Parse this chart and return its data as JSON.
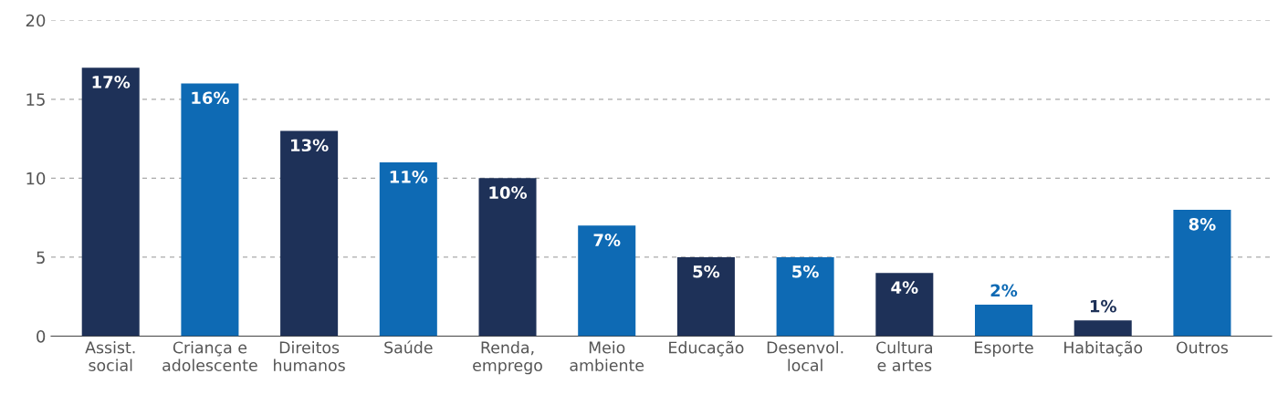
{
  "chart_data": {
    "type": "bar",
    "categories": [
      "Assist.\nsocial",
      "Criança e\nadolescente",
      "Direitos\nhumanos",
      "Saúde",
      "Renda,\nemprego",
      "Meio\nambiente",
      "Educação",
      "Desenvol.\nlocal",
      "Cultura\ne artes",
      "Esporte",
      "Habitação",
      "Outros"
    ],
    "values": [
      17,
      16,
      13,
      11,
      10,
      7,
      5,
      5,
      4,
      2,
      1,
      8
    ],
    "value_labels": [
      "17%",
      "16%",
      "13%",
      "11%",
      "10%",
      "7%",
      "5%",
      "5%",
      "4%",
      "2%",
      "1%",
      "8%"
    ],
    "colors": [
      "#1e3158",
      "#0e6ab4",
      "#1e3158",
      "#0e6ab4",
      "#1e3158",
      "#0e6ab4",
      "#1e3158",
      "#0e6ab4",
      "#1e3158",
      "#0e6ab4",
      "#1e3158",
      "#0e6ab4"
    ],
    "ylim": [
      0,
      20
    ],
    "yticks": [
      0,
      5,
      10,
      15,
      20
    ],
    "grid": "y",
    "legend": false
  }
}
